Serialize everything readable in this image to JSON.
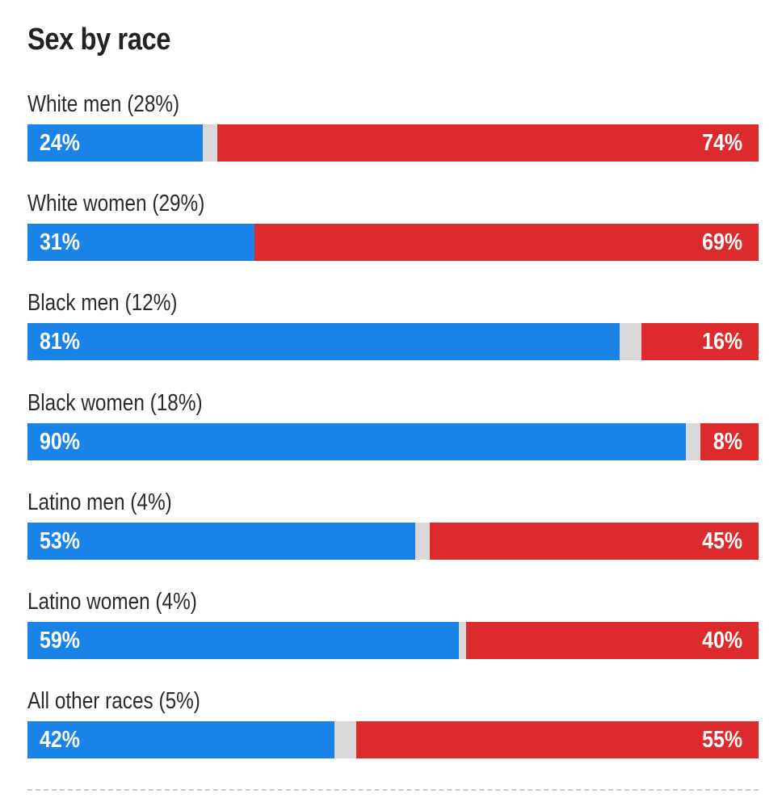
{
  "colors": {
    "blue": "#1a83e8",
    "red": "#dd2a2d",
    "other": "#d9d9d9"
  },
  "chart_data": {
    "type": "bar",
    "orientation": "horizontal-stacked",
    "title": "Sex by race",
    "categories": [
      "White men (28%)",
      "White women (29%)",
      "Black men (12%)",
      "Black women (18%)",
      "Latino men (4%)",
      "Latino women (4%)",
      "All other races (5%)"
    ],
    "series": [
      {
        "name": "Blue",
        "color": "#1a83e8",
        "values": [
          24,
          31,
          81,
          90,
          53,
          59,
          42
        ]
      },
      {
        "name": "Red",
        "color": "#dd2a2d",
        "values": [
          74,
          69,
          16,
          8,
          45,
          40,
          55
        ]
      }
    ],
    "value_labels": {
      "blue": [
        "24%",
        "31%",
        "81%",
        "90%",
        "53%",
        "59%",
        "42%"
      ],
      "red": [
        "74%",
        "69%",
        "16%",
        "8%",
        "45%",
        "40%",
        "55%"
      ]
    },
    "xlim": [
      0,
      100
    ],
    "xlabel": "",
    "ylabel": "",
    "legend": "none",
    "grid": false
  }
}
